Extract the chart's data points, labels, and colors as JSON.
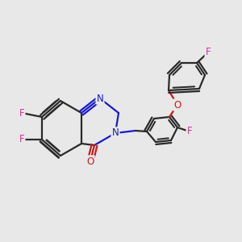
{
  "bg_color": "#e8e8e8",
  "bond_color": "#2a2a2a",
  "N_color": "#1a1acc",
  "O_color": "#cc1a1a",
  "F_color": "#cc3399",
  "lw": 1.6,
  "lw_dbl_inner": 1.2,
  "fs": 8.5,
  "figsize": [
    3.0,
    3.0
  ],
  "dpi": 100,
  "xlim": [
    0,
    300
  ],
  "ylim": [
    0,
    300
  ]
}
